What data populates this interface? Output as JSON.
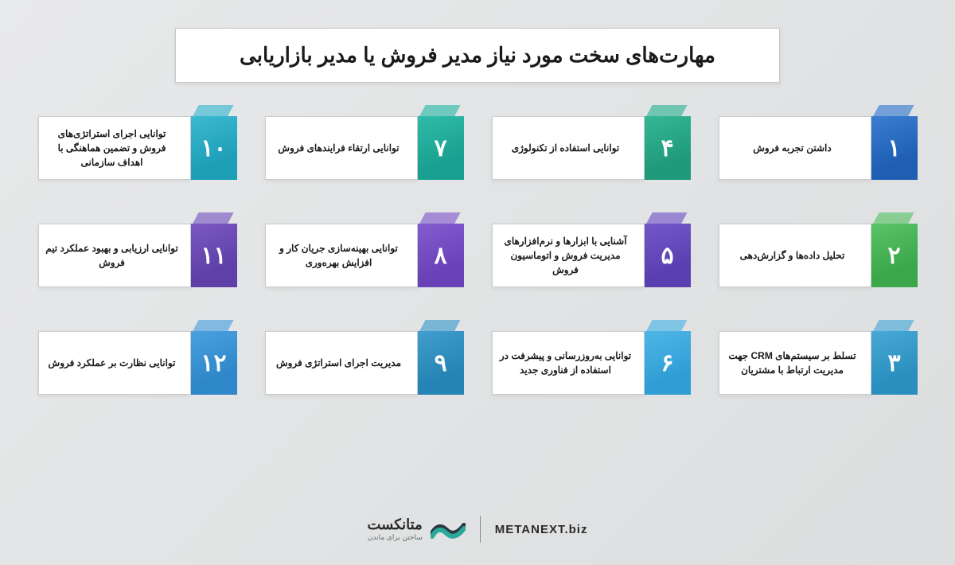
{
  "title": "مهارت‌های سخت مورد نیاز مدیر فروش یا مدیر بازاریابی",
  "background_gradient": [
    "#e8e9ea",
    "#dcdedf"
  ],
  "card_bg": "#ffffff",
  "card_border": "#c9cbcd",
  "text_color": "#1a1a1a",
  "items": [
    {
      "num": "۱",
      "label": "داشتن تجربه فروش",
      "color_main": "#1e5fb3",
      "color_tab": "#3a7dd1"
    },
    {
      "num": "۴",
      "label": "توانایی استفاده از تکنولوژی",
      "color_main": "#1f9a7a",
      "color_tab": "#34b795"
    },
    {
      "num": "۷",
      "label": "توانایی ارتقاء فرایندهای فروش",
      "color_main": "#1aa090",
      "color_tab": "#2fbba9"
    },
    {
      "num": "۱۰",
      "label": "توانایی اجرای استراتژی‌های فروش و تضمین هماهنگی با اهداف سازمانی",
      "color_main": "#1e9fb8",
      "color_tab": "#3bb9d0"
    },
    {
      "num": "۲",
      "label": "تحلیل داده‌ها و گزارش‌دهی",
      "color_main": "#3aa84a",
      "color_tab": "#5bc268"
    },
    {
      "num": "۵",
      "label": "آشنایی با ابزارها و نرم‌افزارهای مدیریت فروش و اتوماسیون فروش",
      "color_main": "#5a3fb0",
      "color_tab": "#7358c9"
    },
    {
      "num": "۸",
      "label": "توانایی بهینه‌سازی جریان کار و افزایش بهره‌وری",
      "color_main": "#6a42b8",
      "color_tab": "#845cd0"
    },
    {
      "num": "۱۱",
      "label": "توانایی ارزیابی و بهبود عملکرد تیم فروش",
      "color_main": "#5f3fa8",
      "color_tab": "#7a59c2"
    },
    {
      "num": "۳",
      "label": "تسلط بر سیستم‌های CRM جهت مدیریت ارتباط با مشتریان",
      "color_main": "#2a8fbf",
      "color_tab": "#48a9d6"
    },
    {
      "num": "۶",
      "label": "توانایی به‌روزرسانی و پیشرفت در استفاده از فناوری جدید",
      "color_main": "#2f9ed4",
      "color_tab": "#4fb6e8"
    },
    {
      "num": "۹",
      "label": "مدیریت اجرای استراتژی فروش",
      "color_main": "#2584b5",
      "color_tab": "#419ecd"
    },
    {
      "num": "۱۲",
      "label": "توانایی نظارت بر عملکرد فروش",
      "color_main": "#2e87c9",
      "color_tab": "#4ba1df"
    }
  ],
  "footer": {
    "brand": "متانکست",
    "tagline": "ساختن برای ماندن",
    "url": "METANEXT.biz",
    "logo_colors": {
      "dark": "#2a3540",
      "teal": "#2aa89a"
    }
  }
}
